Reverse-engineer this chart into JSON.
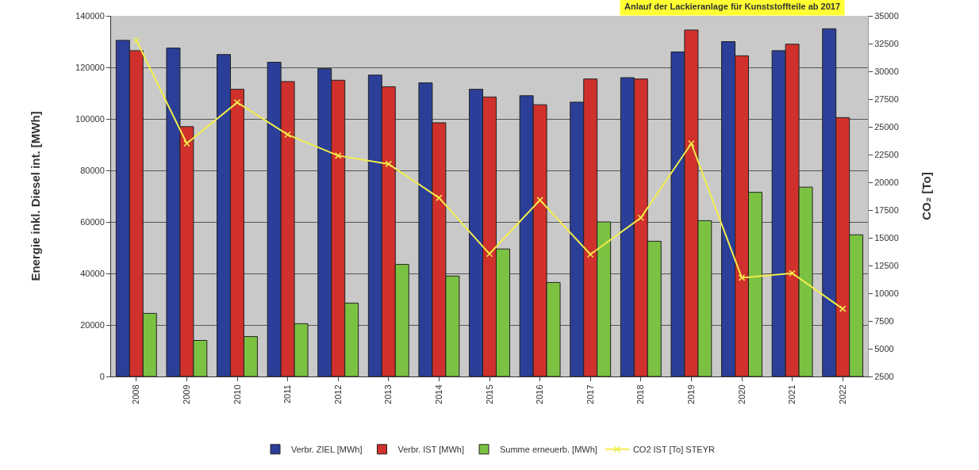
{
  "chart_data": {
    "type": "bar",
    "categories": [
      "2008",
      "2009",
      "2010",
      "2011",
      "2012",
      "2013",
      "2014",
      "2015",
      "2016",
      "2017",
      "2018",
      "2019",
      "2020",
      "2021",
      "2022"
    ],
    "series": [
      {
        "name": "Verbr. ZIEL [MWh]",
        "color": "#2b3f99",
        "values": [
          130500,
          127500,
          125000,
          122000,
          119500,
          117000,
          114000,
          111500,
          109000,
          106500,
          116000,
          126000,
          130000,
          126500,
          135000
        ]
      },
      {
        "name": "Verbr. IST [MWh]",
        "color": "#d0312d",
        "values": [
          126500,
          97000,
          111500,
          114500,
          115000,
          112500,
          98500,
          108500,
          105500,
          115500,
          115500,
          134500,
          124500,
          129000,
          100500
        ]
      },
      {
        "name": "Summe erneuerb. [MWh]",
        "color": "#7cc242",
        "values": [
          24500,
          14000,
          15500,
          20500,
          28500,
          43500,
          39000,
          49500,
          36500,
          60000,
          52500,
          60500,
          71500,
          73500,
          55000
        ]
      },
      {
        "name": "CO2 IST [To] STEYR",
        "color": "#f2ee4a",
        "type": "line",
        "axis": "y2",
        "marker": "cross",
        "values": [
          32800,
          23500,
          27200,
          24300,
          22400,
          21650,
          18600,
          13550,
          18400,
          13500,
          16800,
          23500,
          11400,
          11800,
          8600
        ]
      }
    ],
    "ylabel": "Energie inkl. Diesel int. [MWh]",
    "y2label": "CO₂ [To]",
    "ylim": [
      0,
      140000
    ],
    "yticks": [
      0,
      20000,
      40000,
      60000,
      80000,
      100000,
      120000,
      140000
    ],
    "y2lim": [
      2500,
      35000
    ],
    "y2ticks": [
      2500,
      5000,
      7500,
      10000,
      12500,
      15000,
      17500,
      20000,
      22500,
      25000,
      27500,
      30000,
      32500,
      35000
    ],
    "grid": "y",
    "legend": "bottom",
    "annotations": [
      "Anlauf der Lackieranlage für Kunststoffteile ab 2017"
    ]
  }
}
